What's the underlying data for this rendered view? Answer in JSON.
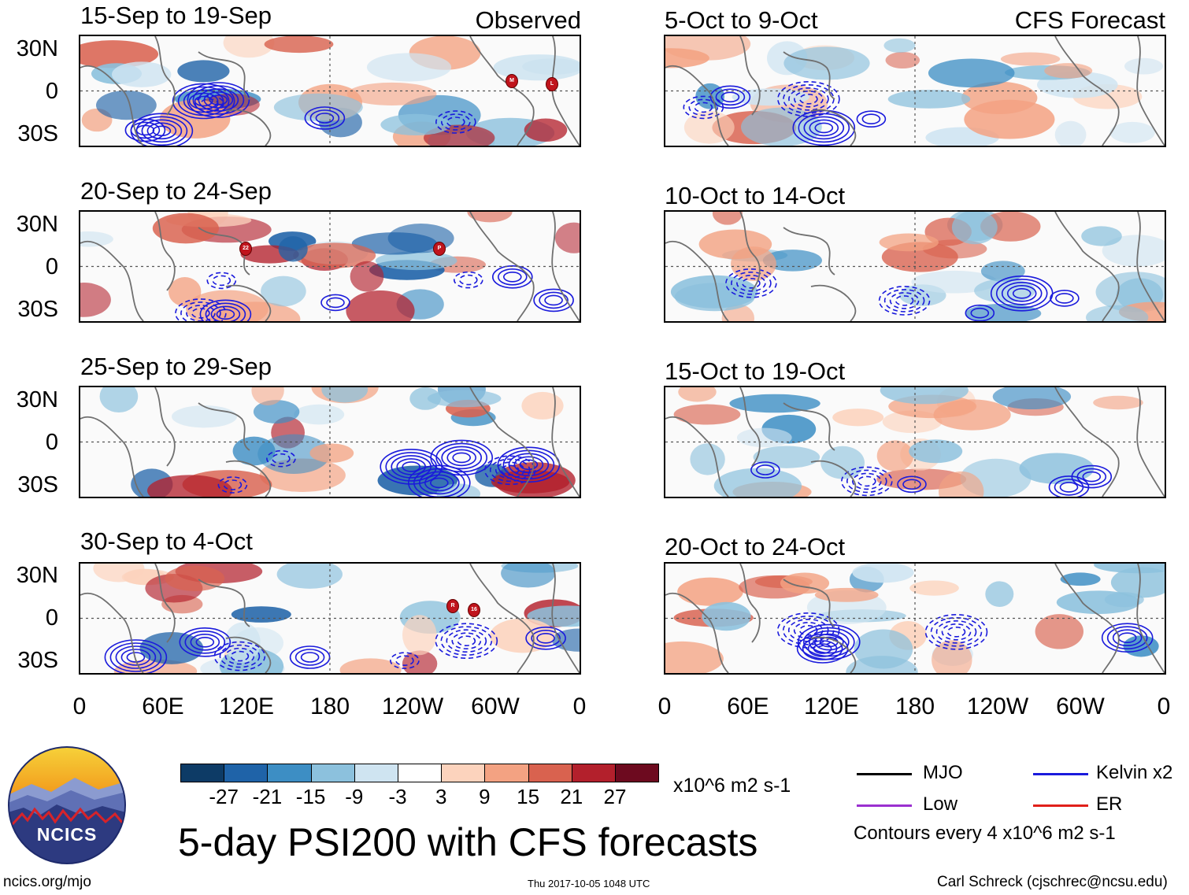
{
  "left_column": {
    "tag": "Observed",
    "panels": [
      {
        "title": "15-Sep to 19-Sep"
      },
      {
        "title": "20-Sep to 24-Sep"
      },
      {
        "title": "25-Sep to 29-Sep"
      },
      {
        "title": "30-Sep to 4-Oct"
      }
    ]
  },
  "right_column": {
    "tag": "CFS Forecast",
    "panels": [
      {
        "title": "5-Oct to 9-Oct"
      },
      {
        "title": "10-Oct to 14-Oct"
      },
      {
        "title": "15-Oct to 19-Oct"
      },
      {
        "title": "20-Oct to 24-Oct"
      }
    ]
  },
  "lat_labels": [
    "30N",
    "0",
    "30S"
  ],
  "lon_labels": [
    "0",
    "60E",
    "120E",
    "180",
    "120W",
    "60W",
    "0"
  ],
  "storm_markers": [
    {
      "panel": 0,
      "label": "M"
    },
    {
      "panel": 0,
      "label": "L"
    },
    {
      "panel": 1,
      "label": "22"
    },
    {
      "panel": 1,
      "label": "P"
    },
    {
      "panel": 3,
      "label": "R"
    },
    {
      "panel": 3,
      "label": "16"
    }
  ],
  "colorbar": {
    "colors": [
      "#0d3b66",
      "#1f63a8",
      "#3d8ec4",
      "#8cc1dd",
      "#cfe4f1",
      "#ffffff",
      "#fcd3bd",
      "#f3a282",
      "#d9624f",
      "#b3202c",
      "#6d0a1f"
    ],
    "labels": [
      "-27",
      "-21",
      "-15",
      "-9",
      "-3",
      "3",
      "9",
      "15",
      "21",
      "27"
    ],
    "units": "x10^6 m2 s-1"
  },
  "title": "5-day PSI200 with CFS forecasts",
  "logo": {
    "text": "NCICS"
  },
  "legend": {
    "items": [
      {
        "label": "MJO",
        "color": "#000000"
      },
      {
        "label": "Kelvin x2",
        "color": "#1a1adc"
      },
      {
        "label": "Low",
        "color": "#9b30d0"
      },
      {
        "label": "ER",
        "color": "#e0201a"
      }
    ],
    "note": "Contours every 4 x10^6 m2 s-1"
  },
  "footer": {
    "left": "ncics.org/mjo",
    "center": "Thu 2017-10-05 1048 UTC",
    "right": "Carl Schreck (cjschrec@ncsu.edu)"
  }
}
